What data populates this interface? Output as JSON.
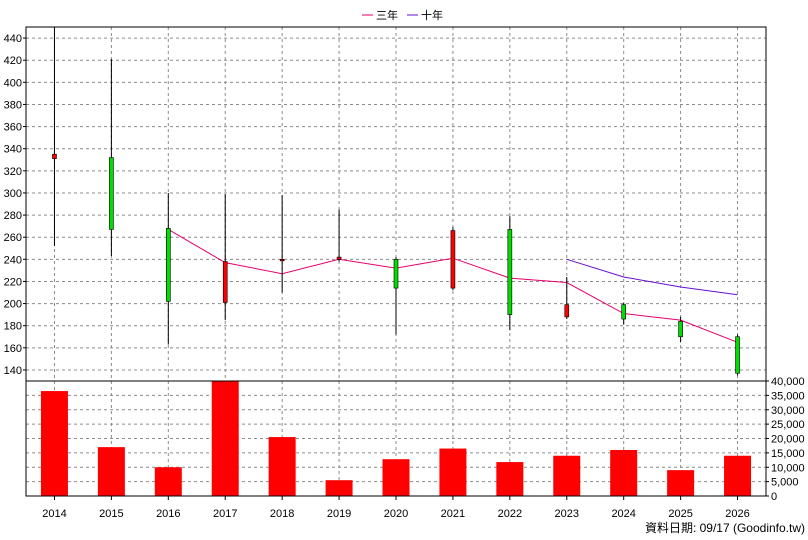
{
  "legend": [
    {
      "label": "三年",
      "color": "#e6006e"
    },
    {
      "label": "十年",
      "color": "#6a0dd6"
    }
  ],
  "footer": "資料日期: 09/17  (Goodinfo.tw)",
  "chart_data": [
    {
      "type": "candlestick",
      "title": "",
      "xlabel": "",
      "ylabel": "",
      "categories": [
        "2014",
        "2015",
        "2016",
        "2017",
        "2018",
        "2019",
        "2020",
        "2021",
        "2022",
        "2023",
        "2024",
        "2025",
        "2026"
      ],
      "ylim": [
        130,
        450
      ],
      "yticks": [
        140,
        160,
        180,
        200,
        220,
        240,
        260,
        280,
        300,
        320,
        340,
        360,
        380,
        400,
        420,
        440
      ],
      "grid": true,
      "candles": [
        {
          "year": "2014",
          "open": 331,
          "close": 335,
          "high": 450,
          "low": 252,
          "color": "red"
        },
        {
          "year": "2015",
          "open": 332,
          "close": 267,
          "high": 421,
          "low": 243,
          "color": "green"
        },
        {
          "year": "2016",
          "open": 268,
          "close": 202,
          "high": 300,
          "low": 163,
          "color": "green"
        },
        {
          "year": "2017",
          "open": 201,
          "close": 238,
          "high": 299,
          "low": 185,
          "color": "red"
        },
        {
          "year": "2018",
          "open": 240,
          "close": 240,
          "high": 298,
          "low": 210,
          "color": "red"
        },
        {
          "year": "2019",
          "open": 240,
          "close": 242,
          "high": 285,
          "low": 238,
          "color": "red"
        },
        {
          "year": "2020",
          "open": 240,
          "close": 214,
          "high": 242,
          "low": 172,
          "color": "green"
        },
        {
          "year": "2021",
          "open": 214,
          "close": 266,
          "high": 269,
          "low": 212,
          "color": "red"
        },
        {
          "year": "2022",
          "open": 267,
          "close": 190,
          "high": 279,
          "low": 176,
          "color": "green"
        },
        {
          "year": "2023",
          "open": 188,
          "close": 199,
          "high": 224,
          "low": 186,
          "color": "red"
        },
        {
          "year": "2024",
          "open": 199,
          "close": 186,
          "high": 201,
          "low": 181,
          "color": "green"
        },
        {
          "year": "2025",
          "open": 184,
          "close": 170,
          "high": 188,
          "low": 165,
          "color": "green"
        },
        {
          "year": "2026",
          "open": 170,
          "close": 137,
          "high": 172,
          "low": 135,
          "color": "green"
        }
      ],
      "series": [
        {
          "name": "三年",
          "color": "#e6006e",
          "values": [
            null,
            null,
            267,
            237,
            227,
            240,
            232,
            241,
            223,
            219,
            191,
            185,
            165
          ]
        },
        {
          "name": "十年",
          "color": "#6a0dd6",
          "values": [
            null,
            null,
            null,
            null,
            null,
            null,
            null,
            null,
            null,
            240,
            224,
            215,
            208
          ]
        }
      ]
    },
    {
      "type": "bar",
      "title": "",
      "categories": [
        "2014",
        "2015",
        "2016",
        "2017",
        "2018",
        "2019",
        "2020",
        "2021",
        "2022",
        "2023",
        "2024",
        "2025",
        "2026"
      ],
      "values": [
        36500,
        17000,
        10000,
        40000,
        20500,
        5500,
        12800,
        16500,
        11800,
        14000,
        16000,
        9000,
        14000
      ],
      "ylim": [
        0,
        40000
      ],
      "yticks": [
        0,
        5000,
        10000,
        15000,
        20000,
        25000,
        30000,
        35000,
        40000
      ],
      "ytick_labels": [
        "0",
        "5,000",
        "10,000",
        "15,000",
        "20,000",
        "25,000",
        "30,000",
        "35,000",
        "40,000"
      ],
      "color": "#ff0000",
      "grid": true
    }
  ]
}
